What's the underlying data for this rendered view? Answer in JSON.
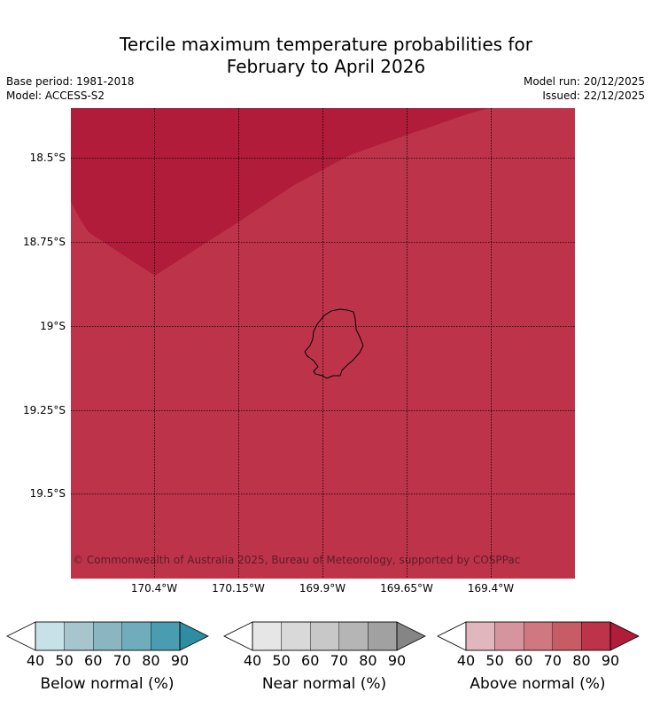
{
  "title_line1": "Tercile maximum temperature probabilities for",
  "title_line2": "February to April 2026",
  "base_period": "Base period: 1981-2018",
  "model": "Model: ACCESS-S2",
  "model_run": "Model run: 20/12/2025",
  "issued": "Issued: 22/12/2025",
  "map": {
    "lat_labels": [
      "18.5°S",
      "18.75°S",
      "19°S",
      "19.25°S",
      "19.5°S"
    ],
    "lon_labels": [
      "170.4°W",
      "170.15°W",
      "169.9°W",
      "169.65°W",
      "169.4°W"
    ],
    "copyright": "© Commonwealth of Australia 2025, Bureau of Meteorology, supported by COSPPac",
    "fill_high": "#b01c3a",
    "fill_main": "#bd344a",
    "island": "Niue"
  },
  "legends": [
    {
      "title": "Below normal (%)",
      "ticks": [
        "40",
        "50",
        "60",
        "70",
        "80",
        "90"
      ],
      "colors": [
        "#ffffff",
        "#c8e1e8",
        "#a6c5cc",
        "#8ab6c2",
        "#6fadbd",
        "#4a9db0",
        "#2e8da2"
      ]
    },
    {
      "title": "Near normal (%)",
      "ticks": [
        "40",
        "50",
        "60",
        "70",
        "80",
        "90"
      ],
      "colors": [
        "#ffffff",
        "#e6e6e6",
        "#d9d9d9",
        "#c8c8c8",
        "#b5b5b5",
        "#a1a1a1",
        "#858585"
      ]
    },
    {
      "title": "Above normal (%)",
      "ticks": [
        "40",
        "50",
        "60",
        "70",
        "80",
        "90"
      ],
      "colors": [
        "#ffffff",
        "#e1b7bd",
        "#d6959e",
        "#cf7880",
        "#c75b66",
        "#bd344a",
        "#b01c3a"
      ]
    }
  ]
}
